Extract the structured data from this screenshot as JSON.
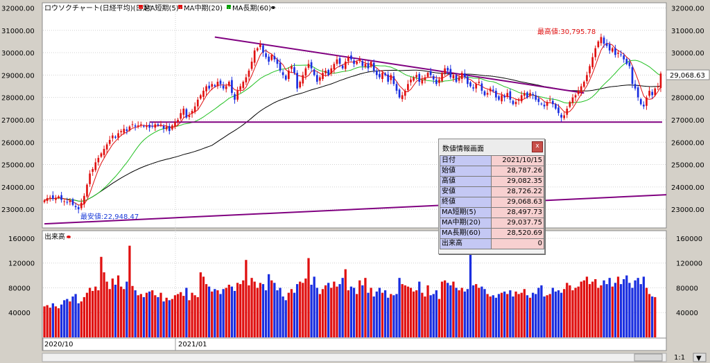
{
  "header": {
    "title": "ロウソクチャート(日経平均)(日足)",
    "legend": [
      {
        "label": "MA短期(5)",
        "color": "#e01010"
      },
      {
        "label": "MA中期(20)",
        "color": "#e01010"
      },
      {
        "label": "MA長期(60)",
        "color": "#00a000"
      }
    ],
    "legend_extra_color": "#000000"
  },
  "price_axis": {
    "ticks": [
      "32000.00",
      "31000.00",
      "30000.00",
      "29000.00",
      "28000.00",
      "27000.00",
      "26000.00",
      "25000.00",
      "24000.00",
      "23000.00"
    ],
    "ticks_right": [
      "32000.00",
      "31000.00",
      "30000.00",
      "29000.00",
      "28000.00",
      "27000.00",
      "26000.00",
      "25000.00",
      "24000.00",
      "23000.00"
    ],
    "current_price_label": "29,068.63"
  },
  "annotations": {
    "high": "最高値:30,795.78",
    "low": "最安値:22,948.47"
  },
  "volume_panel": {
    "label": "出来高",
    "ticks": [
      "160000",
      "120000",
      "80000",
      "40000"
    ],
    "ticks_right": [
      "160000",
      "120000",
      "80000",
      "40000"
    ]
  },
  "x_axis": {
    "labels": [
      "2020/10",
      "2021/01"
    ]
  },
  "status_bar": {
    "zoom": "1:1"
  },
  "info_panel": {
    "title": "数値情報画面",
    "close": "x",
    "rows": [
      {
        "key": "日付",
        "value": "2021/10/15"
      },
      {
        "key": "始値",
        "value": "28,787.26"
      },
      {
        "key": "高値",
        "value": "29,082.35"
      },
      {
        "key": "安値",
        "value": "28,726.22"
      },
      {
        "key": "終値",
        "value": "29,068.63"
      },
      {
        "key": "MA短期(5)",
        "value": "28,497.73"
      },
      {
        "key": "MA中期(20)",
        "value": "29,037.75"
      },
      {
        "key": "MA長期(60)",
        "value": "28,520.69"
      },
      {
        "key": "出来高",
        "value": "0"
      }
    ]
  },
  "chart_data": {
    "type": "candlestick",
    "ylim": [
      22200,
      32200
    ],
    "volume_ylim": [
      0,
      170000
    ],
    "closes": [
      23400,
      23500,
      23550,
      23470,
      23520,
      23580,
      23420,
      23360,
      23300,
      23380,
      23200,
      23100,
      23000,
      23300,
      23600,
      24100,
      24600,
      24800,
      25100,
      25300,
      25500,
      25700,
      25900,
      26100,
      26300,
      26200,
      26400,
      26500,
      26600,
      26500,
      26700,
      26800,
      26700,
      26750,
      26800,
      26700,
      26750,
      26650,
      26700,
      26800,
      26750,
      26800,
      26600,
      26700,
      26500,
      26750,
      26900,
      27000,
      27300,
      27500,
      27100,
      27200,
      27400,
      27600,
      27900,
      28100,
      28300,
      28500,
      28400,
      28600,
      28500,
      28700,
      28600,
      28400,
      28500,
      28700,
      28200,
      27900,
      28300,
      28500,
      28700,
      28900,
      29200,
      29600,
      30100,
      30200,
      30400,
      30000,
      29800,
      29600,
      29900,
      29700,
      29500,
      29200,
      29000,
      28800,
      29200,
      29400,
      29100,
      28400,
      28700,
      29000,
      29300,
      29500,
      29300,
      29000,
      28700,
      28900,
      29100,
      29200,
      29000,
      29300,
      29500,
      29700,
      29500,
      29300,
      29600,
      29800,
      29700,
      29500,
      29600,
      29700,
      29400,
      29500,
      29300,
      29600,
      29200,
      29000,
      28900,
      29100,
      29000,
      28700,
      29000,
      28600,
      28300,
      28000,
      28100,
      28300,
      28600,
      28800,
      28900,
      29000,
      28700,
      28800,
      28900,
      29100,
      29000,
      28800,
      28600,
      28800,
      29100,
      29300,
      29200,
      28900,
      29000,
      28700,
      28900,
      29100,
      28900,
      28600,
      28500,
      28400,
      28600,
      28700,
      28300,
      28100,
      28200,
      28400,
      28300,
      28000,
      27900,
      28100,
      28000,
      28200,
      27900,
      27700,
      27800,
      27900,
      28100,
      28200,
      28000,
      28200,
      28100,
      27900,
      27800,
      27700,
      27600,
      27800,
      27900,
      27700,
      27500,
      27300,
      27100,
      27200,
      27500,
      27800,
      28000,
      28100,
      28300,
      28500,
      28700,
      29000,
      29400,
      29800,
      30200,
      30500,
      30700,
      30400,
      30300,
      30100,
      30200,
      29900,
      30000,
      29900,
      29700,
      29500,
      29400,
      28600,
      28400,
      28000,
      27700,
      27600,
      28000,
      28300,
      28100,
      28400,
      28500,
      29069
    ],
    "volume": [
      50000,
      52000,
      48000,
      55000,
      50000,
      47000,
      53000,
      60000,
      62000,
      58000,
      66000,
      70000,
      55000,
      58000,
      65000,
      72000,
      80000,
      75000,
      82000,
      76000,
      130000,
      105000,
      90000,
      78000,
      95000,
      85000,
      100000,
      82000,
      78000,
      90000,
      148000,
      83000,
      76000,
      68000,
      70000,
      65000,
      72000,
      74000,
      76000,
      68000,
      65000,
      72000,
      58000,
      64000,
      60000,
      62000,
      68000,
      70000,
      73000,
      67000,
      80000,
      60000,
      72000,
      68000,
      65000,
      105000,
      98000,
      86000,
      82000,
      74000,
      78000,
      76000,
      70000,
      78000,
      80000,
      85000,
      82000,
      75000,
      88000,
      86000,
      92000,
      125000,
      84000,
      96000,
      90000,
      80000,
      88000,
      86000,
      76000,
      102000,
      92000,
      88000,
      76000,
      80000,
      66000,
      60000,
      72000,
      78000,
      72000,
      86000,
      90000,
      88000,
      95000,
      128000,
      85000,
      98000,
      80000,
      70000,
      78000,
      84000,
      88000,
      80000,
      90000,
      82000,
      86000,
      96000,
      110000,
      76000,
      82000,
      80000,
      70000,
      92000,
      84000,
      96000,
      72000,
      80000,
      66000,
      74000,
      80000,
      72000,
      76000,
      64000,
      70000,
      68000,
      70000,
      96000,
      86000,
      84000,
      82000,
      80000,
      74000,
      76000,
      90000,
      72000,
      66000,
      84000,
      68000,
      70000,
      76000,
      62000,
      90000,
      92000,
      88000,
      84000,
      90000,
      80000,
      76000,
      80000,
      74000,
      78000,
      140000,
      84000,
      86000,
      80000,
      82000,
      78000,
      70000,
      66000,
      68000,
      64000,
      70000,
      72000,
      74000,
      70000,
      76000,
      66000,
      74000,
      70000,
      72000,
      78000,
      68000,
      64000,
      72000,
      70000,
      80000,
      84000,
      66000,
      68000,
      70000,
      80000,
      74000,
      76000,
      72000,
      78000,
      88000,
      84000,
      76000,
      80000,
      82000,
      90000,
      92000,
      98000,
      86000,
      90000,
      94000,
      80000,
      84000,
      92000,
      86000,
      96000,
      82000,
      88000,
      98000,
      86000,
      94000,
      100000,
      88000,
      80000,
      92000,
      96000,
      86000,
      98000,
      80000,
      70000,
      66000,
      65000
    ],
    "ma_short_label": "MA短期(5)",
    "ma_mid_label": "MA中期(20)",
    "ma_long_label": "MA長期(60)",
    "trendline_down": {
      "from": [
        60,
        30700
      ],
      "to": [
        190,
        28200
      ]
    },
    "support_line": 26900,
    "rising_line": {
      "from": [
        0,
        22350
      ],
      "to": [
        220,
        23650
      ]
    }
  }
}
